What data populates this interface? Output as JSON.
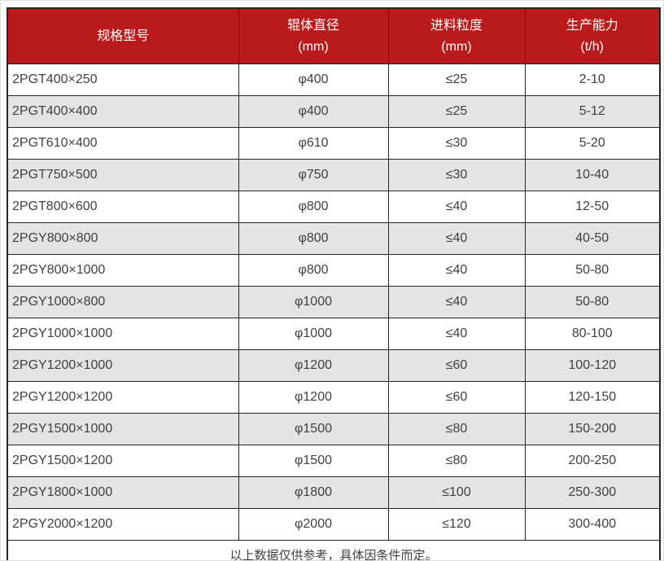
{
  "table": {
    "columns": [
      {
        "label": "规格型号",
        "unit": ""
      },
      {
        "label": "辊体直径",
        "unit": "(mm)"
      },
      {
        "label": "进料粒度",
        "unit": "(mm)"
      },
      {
        "label": "生产能力",
        "unit": "(t/h)"
      }
    ],
    "rows": [
      [
        "2PGT400×250",
        "φ400",
        "≤25",
        "2-10"
      ],
      [
        "2PGT400×400",
        "φ400",
        "≤25",
        "5-12"
      ],
      [
        "2PGT610×400",
        "φ610",
        "≤30",
        "5-20"
      ],
      [
        "2PGT750×500",
        "φ750",
        "≤30",
        "10-40"
      ],
      [
        "2PGT800×600",
        "φ800",
        "≤40",
        "12-50"
      ],
      [
        "2PGY800×800",
        "φ800",
        "≤40",
        "40-50"
      ],
      [
        "2PGY800×1000",
        "φ800",
        "≤40",
        "50-80"
      ],
      [
        "2PGY1000×800",
        "φ1000",
        "≤40",
        "50-80"
      ],
      [
        "2PGY1000×1000",
        "φ1000",
        "≤40",
        "80-100"
      ],
      [
        "2PGY1200×1000",
        "φ1200",
        "≤60",
        "100-120"
      ],
      [
        "2PGY1200×1200",
        "φ1200",
        "≤60",
        "120-150"
      ],
      [
        "2PGY1500×1000",
        "φ1500",
        "≤80",
        "150-200"
      ],
      [
        "2PGY1500×1200",
        "φ1500",
        "≤80",
        "200-250"
      ],
      [
        "2PGY1800×1000",
        "φ1800",
        "≤100",
        "250-300"
      ],
      [
        "2PGY2000×1200",
        "φ2000",
        "≤120",
        "300-400"
      ]
    ],
    "footer_note": "以上数据仅供参考，具体因条件而定。"
  },
  "colors": {
    "header_bg": "#b91a1c",
    "header_text": "#ffffff",
    "row_bg": "#ffffff",
    "row_alt_bg": "#e4e4e4",
    "border": "#262626",
    "body_text": "#404040"
  }
}
